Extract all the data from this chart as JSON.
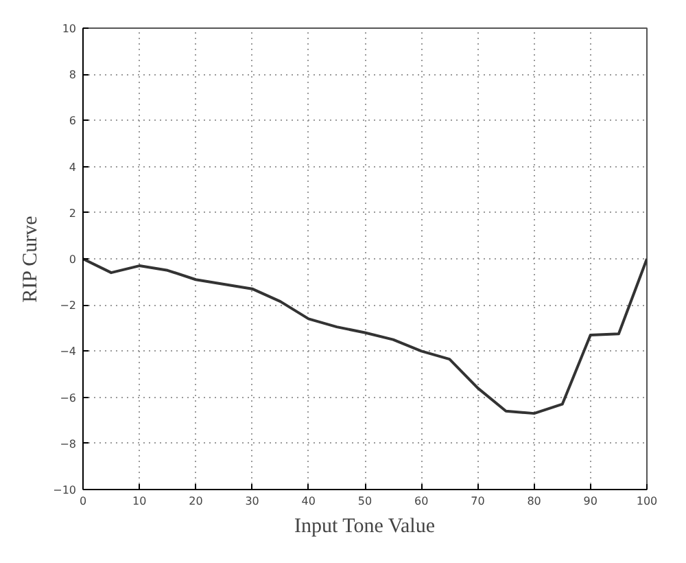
{
  "chart_data": {
    "type": "line",
    "xlabel": "Input Tone Value",
    "ylabel": "RIP Curve",
    "x": [
      0,
      5,
      10,
      15,
      20,
      25,
      30,
      35,
      40,
      45,
      50,
      55,
      60,
      65,
      70,
      75,
      80,
      85,
      90,
      95,
      100
    ],
    "series": [
      {
        "color": "#333333",
        "values": [
          0,
          -0.6,
          -0.3,
          -0.5,
          -0.9,
          -1.1,
          -1.3,
          -1.85,
          -2.6,
          -2.95,
          -3.2,
          -3.5,
          -4.0,
          -4.35,
          -5.6,
          -6.6,
          -6.7,
          -6.3,
          -3.3,
          -3.25,
          0
        ]
      }
    ],
    "xlim": [
      0,
      100
    ],
    "xticks": [
      0,
      10,
      20,
      30,
      40,
      50,
      60,
      70,
      80,
      90,
      100
    ],
    "ylim": [
      -10,
      10
    ],
    "yticks": [
      -10,
      -8,
      -6,
      -4,
      -2,
      0,
      2,
      4,
      6,
      8,
      10
    ],
    "grid": true,
    "line_style": "solid"
  }
}
